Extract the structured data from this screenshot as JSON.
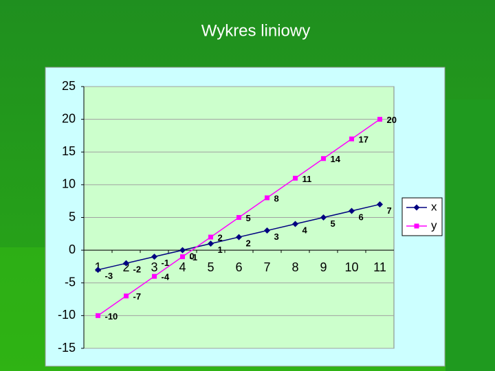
{
  "chart_data": {
    "type": "line",
    "title": "Wykres liniowy",
    "categories": [
      1,
      2,
      3,
      4,
      5,
      6,
      7,
      8,
      9,
      10,
      11
    ],
    "series": [
      {
        "name": "x",
        "color": "#000080",
        "marker": "diamond",
        "values": [
          -3,
          -2,
          -1,
          0,
          1,
          2,
          3,
          4,
          5,
          6,
          7
        ]
      },
      {
        "name": "y",
        "color": "#ff00ff",
        "marker": "square",
        "values": [
          -10,
          -7,
          -4,
          -1,
          2,
          5,
          8,
          11,
          14,
          17,
          20
        ]
      }
    ],
    "ylim": [
      -15,
      25
    ],
    "yticks": [
      -15,
      -10,
      -5,
      0,
      5,
      10,
      15,
      20,
      25
    ],
    "grid": true,
    "legend": "right",
    "data_labels": true
  }
}
